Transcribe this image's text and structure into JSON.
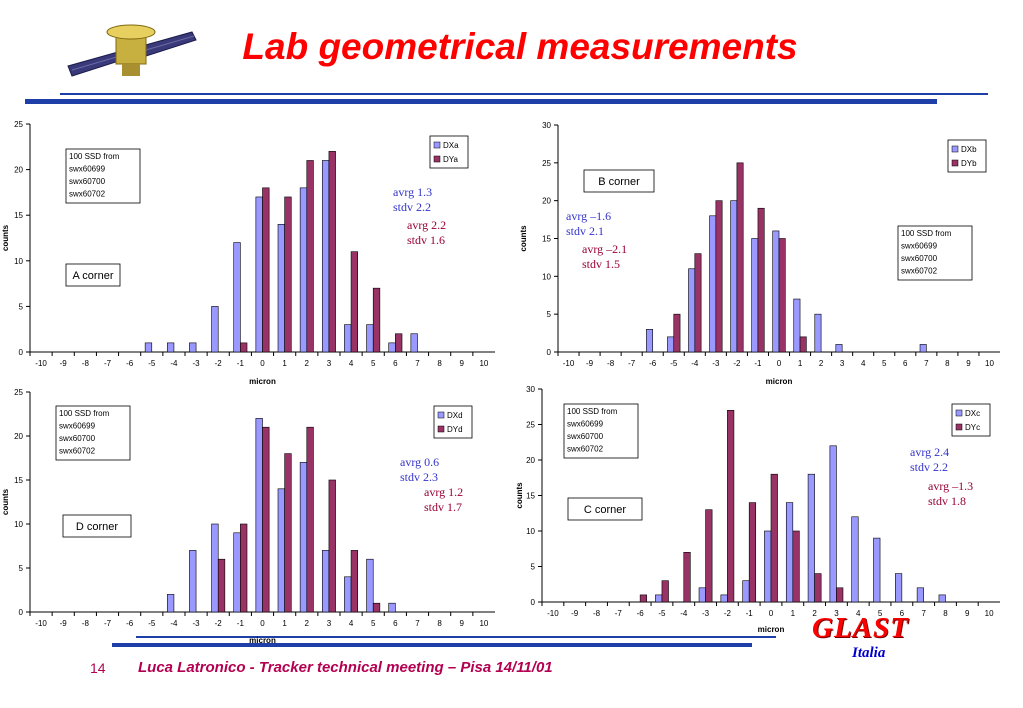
{
  "slide": {
    "title": "Lab geometrical measurements",
    "page_number": "14",
    "footer": "Luca Latronico - Tracker technical meeting – Pisa 14/11/01",
    "logo_text": "GLAST",
    "logo_subtext": "Italia"
  },
  "colors": {
    "blue": "#9999ff",
    "purple": "#993366",
    "title": "#ff0000",
    "rule": "#1f3fa8"
  },
  "chart_data": [
    {
      "type": "bar",
      "ylabel": "counts",
      "xlabel": "micron",
      "ylim": [
        0,
        25
      ],
      "yticks": [
        0,
        5,
        10,
        15,
        20,
        25
      ],
      "categories": [
        "-10",
        "-9",
        "-8",
        "-7",
        "-6",
        "-5",
        "-4",
        "-3",
        "-2",
        "-1",
        "0",
        "1",
        "2",
        "3",
        "4",
        "5",
        "6",
        "7",
        "8",
        "9",
        "10"
      ],
      "series": [
        {
          "name": "DXa",
          "color": "#9999ff",
          "values": [
            0,
            0,
            0,
            0,
            0,
            1,
            1,
            1,
            5,
            12,
            17,
            14,
            18,
            21,
            3,
            3,
            1,
            2,
            0,
            0,
            0
          ]
        },
        {
          "name": "DYa",
          "color": "#993366",
          "values": [
            0,
            0,
            0,
            0,
            0,
            0,
            0,
            0,
            0,
            1,
            18,
            17,
            21,
            22,
            11,
            7,
            2,
            0,
            0,
            0,
            0
          ]
        }
      ],
      "legend": "top-right",
      "notes": [
        "100 SSD from",
        "swx60699",
        "swx60700",
        "swx60702"
      ],
      "corner_label": "A corner",
      "stats": [
        {
          "color": "#3333cc",
          "lines": [
            "avrg 1.3",
            "stdv  2.2"
          ]
        },
        {
          "color": "#990033",
          "lines": [
            "avrg 2.2",
            "stdv  1.6"
          ]
        }
      ]
    },
    {
      "type": "bar",
      "ylabel": "counts",
      "xlabel": "micron",
      "ylim": [
        0,
        30
      ],
      "yticks": [
        0,
        5,
        10,
        15,
        20,
        25,
        30
      ],
      "categories": [
        "-10",
        "-9",
        "-8",
        "-7",
        "-6",
        "-5",
        "-4",
        "-3",
        "-2",
        "-1",
        "0",
        "1",
        "2",
        "3",
        "4",
        "5",
        "6",
        "7",
        "8",
        "9",
        "10"
      ],
      "series": [
        {
          "name": "DXb",
          "color": "#9999ff",
          "values": [
            0,
            0,
            0,
            0,
            3,
            2,
            11,
            18,
            20,
            15,
            16,
            7,
            5,
            1,
            0,
            0,
            0,
            1,
            0,
            0,
            0
          ]
        },
        {
          "name": "DYb",
          "color": "#993366",
          "values": [
            0,
            0,
            0,
            0,
            0,
            5,
            13,
            20,
            25,
            19,
            15,
            2,
            0,
            0,
            0,
            0,
            0,
            0,
            0,
            0,
            0
          ]
        }
      ],
      "legend": "top-right",
      "notes": [
        "100 SSD from",
        "swx60699",
        "swx60700",
        "swx60702"
      ],
      "corner_label": "B corner",
      "stats": [
        {
          "color": "#3333cc",
          "lines": [
            "avrg –1.6",
            "stdv  2.1"
          ]
        },
        {
          "color": "#990033",
          "lines": [
            "avrg –2.1",
            "stdv  1.5"
          ]
        }
      ]
    },
    {
      "type": "bar",
      "ylabel": "counts",
      "xlabel": "micron",
      "ylim": [
        0,
        25
      ],
      "yticks": [
        0,
        5,
        10,
        15,
        20,
        25
      ],
      "categories": [
        "-10",
        "-9",
        "-8",
        "-7",
        "-6",
        "-5",
        "-4",
        "-3",
        "-2",
        "-1",
        "0",
        "1",
        "2",
        "3",
        "4",
        "5",
        "6",
        "7",
        "8",
        "9",
        "10"
      ],
      "series": [
        {
          "name": "DXd",
          "color": "#9999ff",
          "values": [
            0,
            0,
            0,
            0,
            0,
            0,
            2,
            7,
            10,
            9,
            22,
            14,
            17,
            7,
            4,
            6,
            1,
            0,
            0,
            0,
            0
          ]
        },
        {
          "name": "DYd",
          "color": "#993366",
          "values": [
            0,
            0,
            0,
            0,
            0,
            0,
            0,
            0,
            6,
            10,
            21,
            18,
            21,
            15,
            7,
            1,
            0,
            0,
            0,
            0,
            0
          ]
        }
      ],
      "legend": "top-right",
      "notes": [
        "100 SSD from",
        "swx60699",
        "swx60700",
        "swx60702"
      ],
      "corner_label": "D corner",
      "stats": [
        {
          "color": "#3333cc",
          "lines": [
            "avrg 0.6",
            "stdv  2.3"
          ]
        },
        {
          "color": "#990033",
          "lines": [
            "avrg 1.2",
            "stdv  1.7"
          ]
        }
      ]
    },
    {
      "type": "bar",
      "ylabel": "counts",
      "xlabel": "micron",
      "ylim": [
        0,
        30
      ],
      "yticks": [
        0,
        5,
        10,
        15,
        20,
        25,
        30
      ],
      "categories": [
        "-10",
        "-9",
        "-8",
        "-7",
        "-6",
        "-5",
        "-4",
        "-3",
        "-2",
        "-1",
        "0",
        "1",
        "2",
        "3",
        "4",
        "5",
        "6",
        "7",
        "8",
        "9",
        "10"
      ],
      "series": [
        {
          "name": "DXc",
          "color": "#9999ff",
          "values": [
            0,
            0,
            0,
            0,
            0,
            1,
            0,
            2,
            1,
            3,
            10,
            14,
            18,
            22,
            12,
            9,
            4,
            2,
            1,
            0,
            0
          ]
        },
        {
          "name": "DYc",
          "color": "#993366",
          "values": [
            0,
            0,
            0,
            0,
            1,
            3,
            7,
            13,
            27,
            14,
            18,
            10,
            4,
            2,
            0,
            0,
            0,
            0,
            0,
            0,
            0
          ]
        }
      ],
      "legend": "top-right",
      "notes": [
        "100 SSD from",
        "swx60699",
        "swx60700",
        "swx60702"
      ],
      "corner_label": "C corner",
      "stats": [
        {
          "color": "#3333cc",
          "lines": [
            "avrg 2.4",
            "stdv  2.2"
          ]
        },
        {
          "color": "#990033",
          "lines": [
            "avrg –1.3",
            "stdv  1.8"
          ]
        }
      ]
    }
  ]
}
